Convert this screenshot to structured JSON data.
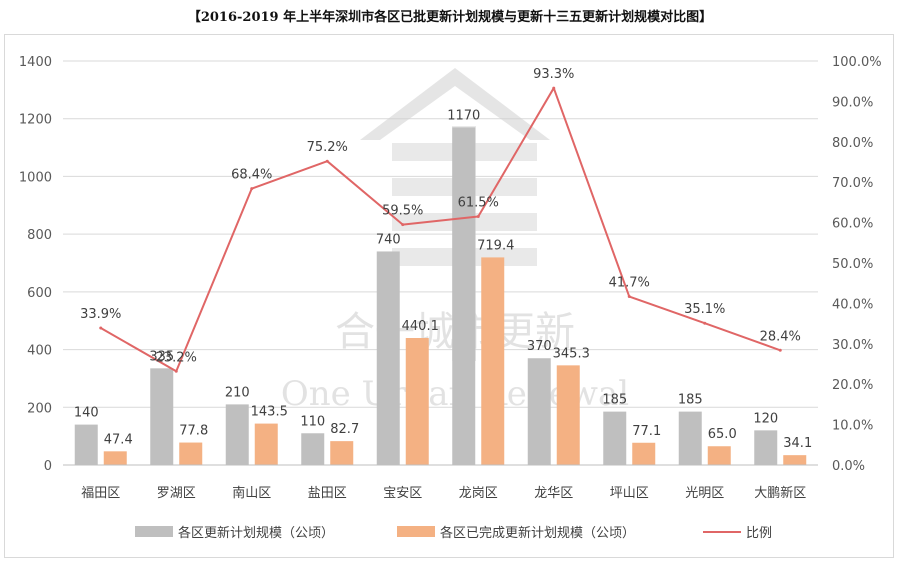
{
  "title": "【2016-2019 年上半年深圳市各区已批更新计划规模与更新十三五更新计划规模对比图】",
  "watermark": {
    "cn": "合一城市更新",
    "en": "One Urban Renewal"
  },
  "colors": {
    "plan": "#bfbfbf",
    "done": "#f4b183",
    "ratio": "#e06666",
    "grid": "#d9d9d9"
  },
  "chart_data": {
    "type": "bar",
    "categories": [
      "福田区",
      "罗湖区",
      "南山区",
      "盐田区",
      "宝安区",
      "龙岗区",
      "龙华区",
      "坪山区",
      "光明区",
      "大鹏新区"
    ],
    "series": [
      {
        "name": "各区更新计划规模（公顷）",
        "type": "bar",
        "axis": "left",
        "values": [
          140,
          335,
          210,
          110,
          740,
          1170,
          370,
          185,
          185,
          120
        ],
        "labels": [
          "140",
          "335",
          "210",
          "110",
          "740",
          "1170",
          "370",
          "185",
          "185",
          "120"
        ]
      },
      {
        "name": "各区已完成更新计划规模（公顷）",
        "type": "bar",
        "axis": "left",
        "values": [
          47.4,
          77.8,
          143.5,
          82.7,
          440.1,
          719.4,
          345.3,
          77.1,
          65.0,
          34.1
        ],
        "labels": [
          "47.4",
          "77.8",
          "143.5",
          "82.7",
          "440.1",
          "719.4",
          "345.3",
          "77.1",
          "65.0",
          "34.1"
        ]
      },
      {
        "name": "比例",
        "type": "line",
        "axis": "right",
        "values": [
          33.9,
          23.2,
          68.4,
          75.2,
          59.5,
          61.5,
          93.3,
          41.7,
          35.1,
          28.4
        ],
        "labels": [
          "33.9%",
          "23.2%",
          "68.4%",
          "75.2%",
          "59.5%",
          "61.5%",
          "93.3%",
          "41.7%",
          "35.1%",
          "28.4%"
        ]
      }
    ],
    "y_left": {
      "min": 0,
      "max": 1400,
      "ticks": [
        "0",
        "200",
        "400",
        "600",
        "800",
        "1000",
        "1200",
        "1400"
      ]
    },
    "y_right": {
      "min": 0,
      "max": 100,
      "ticks": [
        "0.0%",
        "10.0%",
        "20.0%",
        "30.0%",
        "40.0%",
        "50.0%",
        "60.0%",
        "70.0%",
        "80.0%",
        "90.0%",
        "100.0%"
      ]
    },
    "grid": true,
    "legend": "bottom"
  }
}
